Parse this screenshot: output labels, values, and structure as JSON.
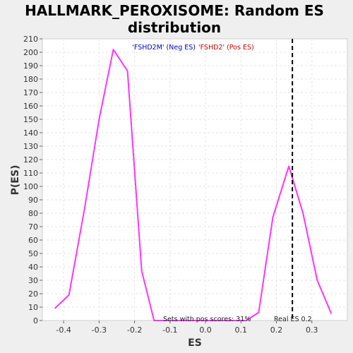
{
  "chart_data": {
    "type": "line",
    "title": "HALLMARK_PEROXISOME: Random ES distribution",
    "title_lines": [
      "HALLMARK_PEROXISOME: Random ES",
      "distribution"
    ],
    "xlabel": "ES",
    "ylabel": "P(ES)",
    "xlim": [
      -0.46,
      0.4
    ],
    "ylim": [
      0,
      210
    ],
    "x_ticks": [
      -0.4,
      -0.3,
      -0.2,
      -0.1,
      0.0,
      0.1,
      0.2,
      0.3
    ],
    "x_tick_labels": [
      "-0.4",
      "-0.3",
      "-0.2",
      "-0.1",
      "0.0",
      "0.1",
      "0.2",
      "0.3"
    ],
    "y_ticks": [
      0,
      10,
      20,
      30,
      40,
      50,
      60,
      70,
      80,
      90,
      100,
      110,
      120,
      130,
      140,
      150,
      160,
      170,
      180,
      190,
      200,
      210
    ],
    "grid": true,
    "legend": {
      "neg": "'FSHD2M' (Neg ES)",
      "pos": "'FSHD2' (Pos ES)",
      "neg_color": "#0000cc",
      "pos_color": "#cc0000",
      "placement": "top-center"
    },
    "series": [
      {
        "color": "#ff33ff",
        "x": [
          -0.425,
          -0.385,
          -0.34,
          -0.3,
          -0.26,
          -0.22,
          -0.18,
          -0.145,
          0.115,
          0.15,
          0.19,
          0.235,
          0.275,
          0.315,
          0.355
        ],
        "y": [
          9,
          19,
          85,
          150,
          202,
          186,
          37,
          0,
          0,
          6,
          77,
          115,
          80,
          30,
          5
        ]
      }
    ],
    "real_es": 0.245,
    "annotations": {
      "pos_scores": "Sets with pos scores: 31%",
      "real_es": "Real ES 0.2"
    },
    "colors": {
      "background": "#efefef",
      "plot_bg": "#ffffff",
      "grid": "#e6e6e6",
      "line": "#ff33ff",
      "real_es_line": "#000000"
    }
  }
}
